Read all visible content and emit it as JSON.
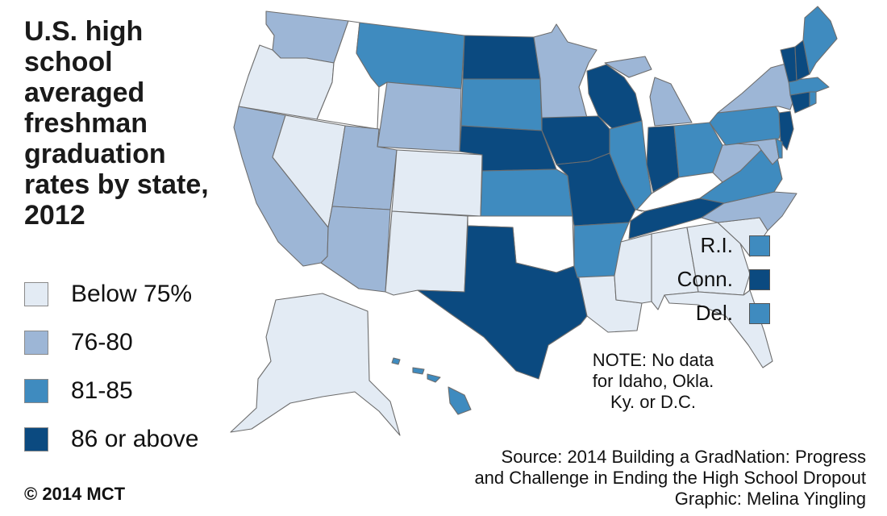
{
  "title": {
    "lines": [
      "U.S. high",
      "school",
      "averaged",
      "freshman",
      "graduation",
      "rates by state,",
      "2012"
    ]
  },
  "legend": [
    {
      "label": "Below 75%",
      "color": "#e3ebf4"
    },
    {
      "label": "76-80",
      "color": "#9db6d6"
    },
    {
      "label": "81-85",
      "color": "#3f8bbf"
    },
    {
      "label": "86 or above",
      "color": "#0b4a80"
    }
  ],
  "no_data_color": "#ffffff",
  "small_states": [
    {
      "label": "R.I.",
      "color": "#3f8bbf"
    },
    {
      "label": "Conn.",
      "color": "#0b4a80"
    },
    {
      "label": "Del.",
      "color": "#3f8bbf"
    }
  ],
  "note": {
    "lines": [
      "NOTE: No data",
      "for Idaho, Okla.",
      "Ky. or D.C."
    ]
  },
  "source": {
    "lines": [
      "Source: 2014 Building a GradNation: Progress",
      "and Challenge in Ending the High School Dropout",
      "Graphic: Melina Yingling"
    ]
  },
  "copyright": "© 2014 MCT",
  "states": {
    "WA": "#9db6d6",
    "OR": "#e3ebf4",
    "CA": "#9db6d6",
    "NV": "#e3ebf4",
    "ID": "#ffffff",
    "MT": "#3f8bbf",
    "WY": "#9db6d6",
    "UT": "#9db6d6",
    "AZ": "#9db6d6",
    "CO": "#e3ebf4",
    "NM": "#e3ebf4",
    "ND": "#0b4a80",
    "SD": "#3f8bbf",
    "NE": "#0b4a80",
    "KS": "#3f8bbf",
    "OK": "#ffffff",
    "TX": "#0b4a80",
    "MN": "#9db6d6",
    "IA": "#0b4a80",
    "MO": "#0b4a80",
    "AR": "#3f8bbf",
    "LA": "#e3ebf4",
    "WI": "#0b4a80",
    "IL": "#3f8bbf",
    "MI": "#9db6d6",
    "IN": "#0b4a80",
    "OH": "#3f8bbf",
    "KY": "#ffffff",
    "TN": "#0b4a80",
    "MS": "#e3ebf4",
    "AL": "#e3ebf4",
    "GA": "#e3ebf4",
    "FL": "#e3ebf4",
    "SC": "#e3ebf4",
    "NC": "#9db6d6",
    "VA": "#3f8bbf",
    "WV": "#9db6d6",
    "PA": "#3f8bbf",
    "NY": "#9db6d6",
    "NJ": "#0b4a80",
    "MD": "#9db6d6",
    "DE": "#3f8bbf",
    "CT": "#0b4a80",
    "RI": "#3f8bbf",
    "MA": "#3f8bbf",
    "VT": "#0b4a80",
    "NH": "#0b4a80",
    "ME": "#3f8bbf",
    "AK": "#e3ebf4",
    "HI": "#3f8bbf"
  }
}
